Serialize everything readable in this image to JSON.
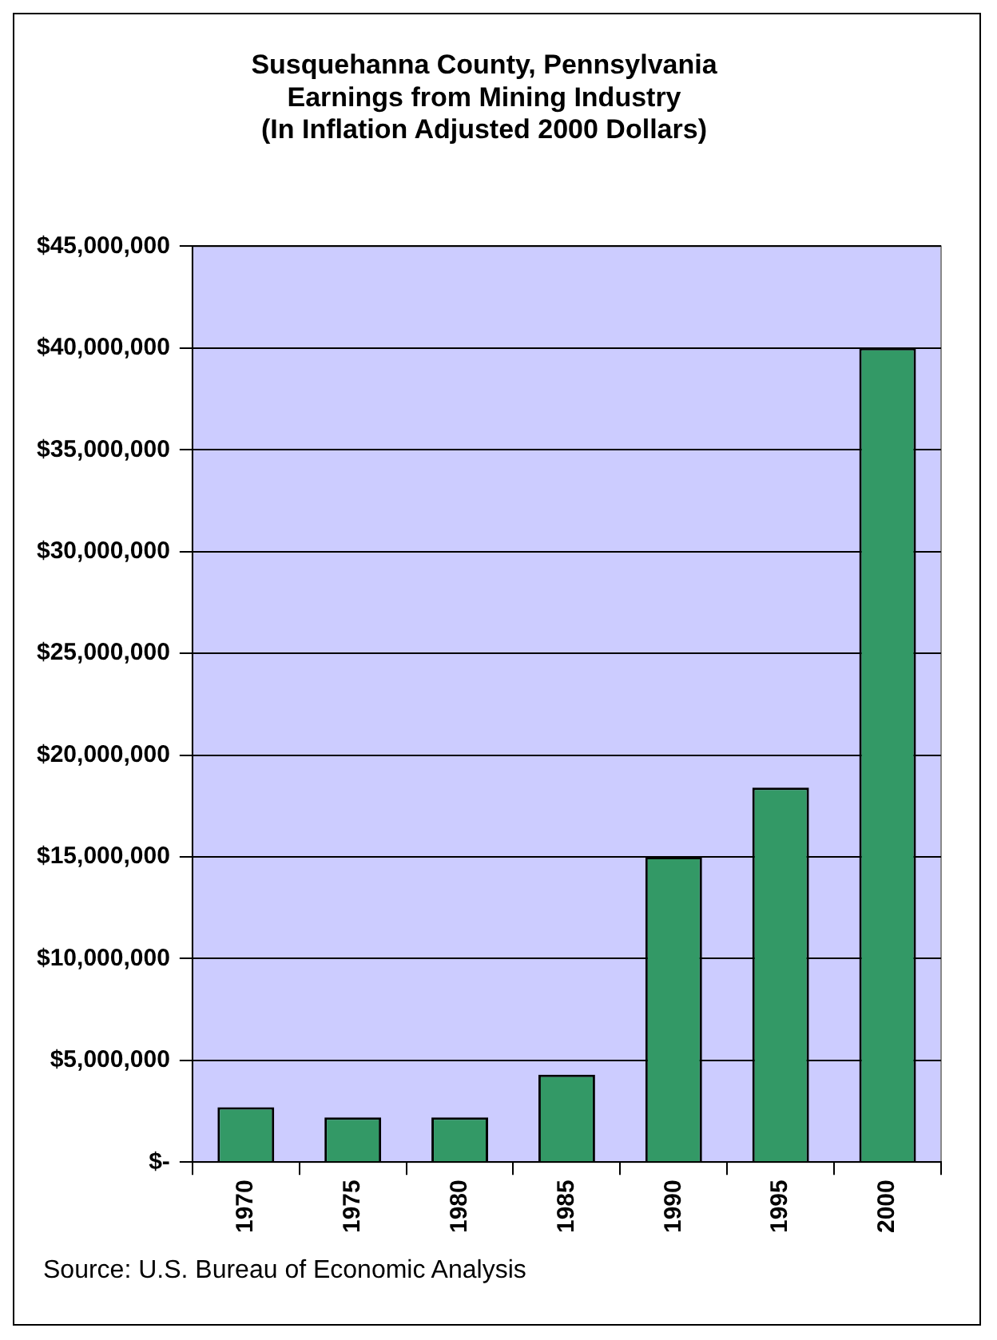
{
  "chart_data": {
    "type": "bar",
    "title": "Susquehanna County, Pennsylvania\nEarnings from Mining Industry\n(In Inflation Adjusted 2000 Dollars)",
    "categories": [
      "1970",
      "1975",
      "1980",
      "1985",
      "1990",
      "1995",
      "2000"
    ],
    "values": [
      2700000,
      2200000,
      2200000,
      4300000,
      15000000,
      18400000,
      40000000
    ],
    "color": "#339966",
    "ylim": [
      0,
      45000000
    ],
    "yticks": [
      {
        "value": 0,
        "label": "$-"
      },
      {
        "value": 5000000,
        "label": "$5,000,000"
      },
      {
        "value": 10000000,
        "label": "$10,000,000"
      },
      {
        "value": 15000000,
        "label": "$15,000,000"
      },
      {
        "value": 20000000,
        "label": "$20,000,000"
      },
      {
        "value": 25000000,
        "label": "$25,000,000"
      },
      {
        "value": 30000000,
        "label": "$30,000,000"
      },
      {
        "value": 35000000,
        "label": "$35,000,000"
      },
      {
        "value": 40000000,
        "label": "$40,000,000"
      },
      {
        "value": 45000000,
        "label": "$45,000,000"
      }
    ],
    "grid": "y",
    "annotations": [
      "Source: U.S. Bureau of Economic Analysis"
    ]
  }
}
